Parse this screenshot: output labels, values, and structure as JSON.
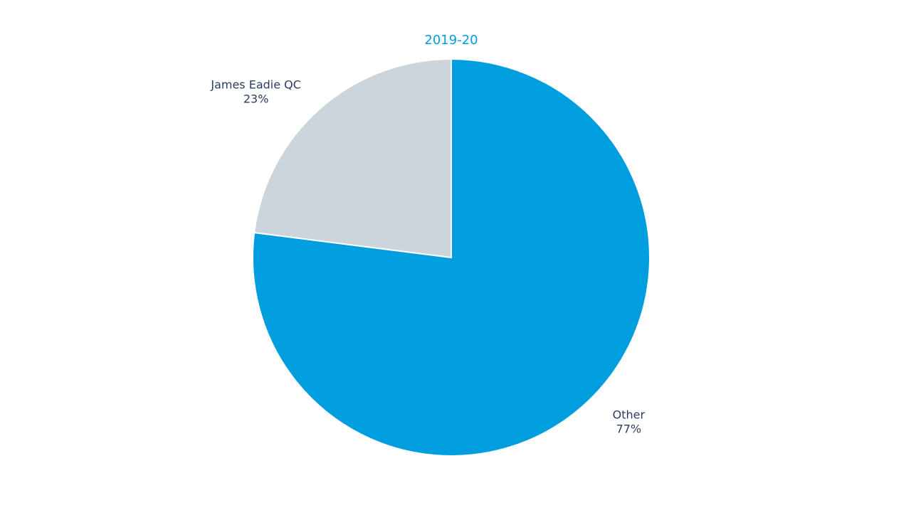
{
  "chart_data": {
    "type": "pie",
    "title": "2019-20",
    "categories": [
      "Other",
      "James Eadie QC"
    ],
    "values": [
      77,
      23
    ],
    "value_labels": [
      "77%",
      "23%"
    ],
    "colors": [
      "#009ddf",
      "#ccd4dc"
    ],
    "title_color": "#009ddf"
  }
}
